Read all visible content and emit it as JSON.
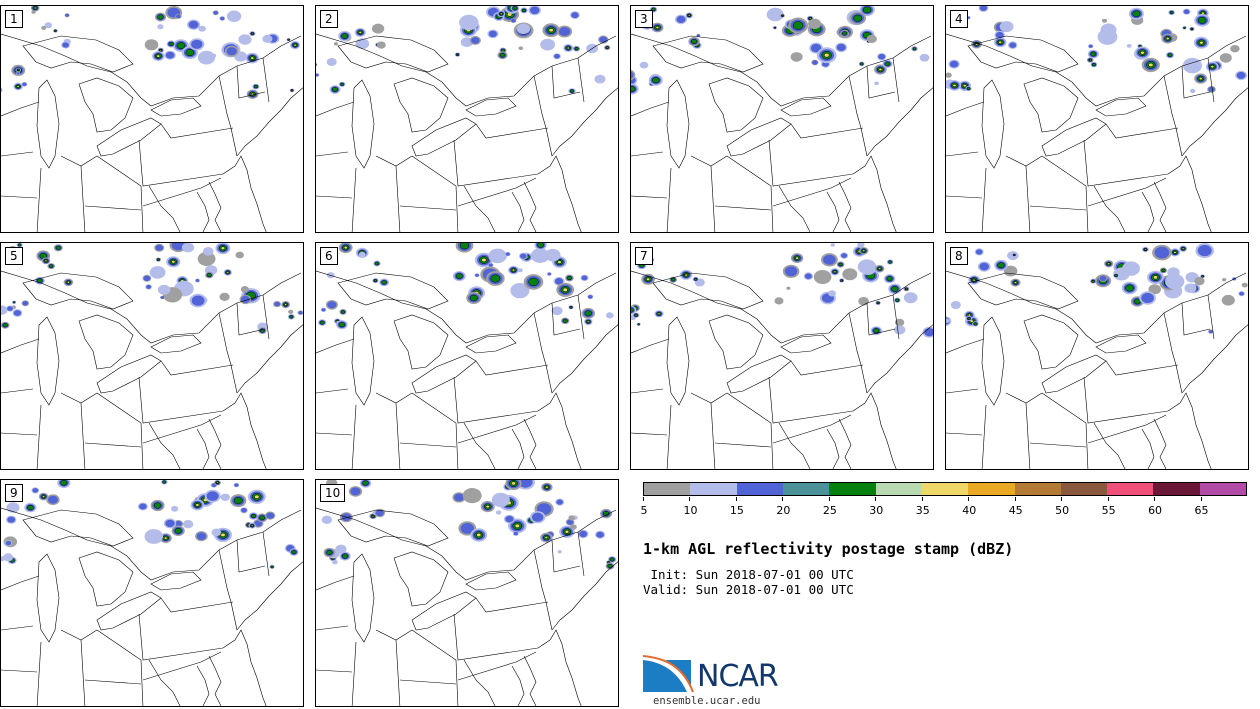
{
  "members": [
    "1",
    "2",
    "3",
    "4",
    "5",
    "6",
    "7",
    "8",
    "9",
    "10"
  ],
  "colorbar": {
    "colors": [
      "#a0a0a0",
      "#b4bcea",
      "#5063d7",
      "#4c9399",
      "#06800e",
      "#b9dab3",
      "#efd869",
      "#eaa924",
      "#b37a35",
      "#8b5a3e",
      "#f0507a",
      "#6b1838",
      "#b04ca6"
    ],
    "labels": [
      "5",
      "10",
      "15",
      "20",
      "25",
      "30",
      "35",
      "40",
      "45",
      "50",
      "55",
      "60",
      "65"
    ]
  },
  "title": "1-km AGL reflectivity postage stamp (dBZ)",
  "init_line": " Init: Sun 2018-07-01 00 UTC",
  "valid_line": "Valid: Sun 2018-07-01 00 UTC",
  "logo": {
    "text": "NCAR",
    "url": "ensemble.ucar.edu"
  }
}
